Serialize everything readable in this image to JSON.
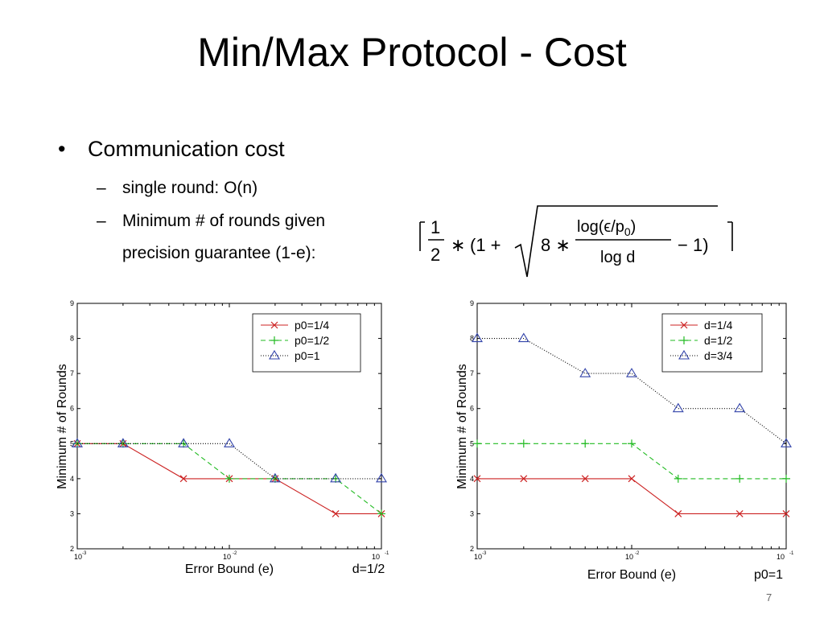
{
  "slide": {
    "title": "Min/Max Protocol - Cost",
    "bullet": "Communication cost",
    "bullet_marker": "•",
    "sub_marker": "–",
    "sub1": "single round: O(n)",
    "sub2_line1": "Minimum # of rounds given",
    "sub2_line2": "precision guarantee (1-e):",
    "page_number": "7"
  },
  "formula": {
    "half_num": "1",
    "half_den": "2",
    "times1": "∗",
    "open": "(1 +",
    "eight": "8 ∗",
    "numerator": "log(ϵ/p",
    "numerator_sub": "0",
    "numerator_close": ")",
    "denominator": "log d",
    "minus": "− 1)"
  },
  "chart_data": [
    {
      "type": "line",
      "xlabel": "Error Bound (e)",
      "ylabel": "Minimum # of Rounds",
      "annotation": "d=1/2",
      "x_scale": "log",
      "x_range": [
        0.001,
        0.1
      ],
      "ylim": [
        2,
        9
      ],
      "grid": false,
      "legend_position": "top-right",
      "x_tick_labels": [
        {
          "base": "10",
          "exp": "-3"
        },
        {
          "base": "10",
          "exp": "-2"
        },
        {
          "base": "10",
          "exp": "-1"
        }
      ],
      "y_ticks": [
        2,
        3,
        4,
        5,
        6,
        7,
        8,
        9
      ],
      "x": [
        0.001,
        0.002,
        0.005,
        0.01,
        0.02,
        0.05,
        0.1
      ],
      "series": [
        {
          "name": "p0=1/4",
          "color": "#cc2222",
          "style": "solid",
          "marker": "x",
          "points": [
            [
              0.001,
              5
            ],
            [
              0.002,
              5
            ],
            [
              0.005,
              4
            ],
            [
              0.01,
              4
            ],
            [
              0.02,
              4
            ],
            [
              0.05,
              3
            ],
            [
              0.1,
              3
            ]
          ]
        },
        {
          "name": "p0=1/2",
          "color": "#22bb22",
          "style": "dashed",
          "marker": "+",
          "points": [
            [
              0.001,
              5
            ],
            [
              0.002,
              5
            ],
            [
              0.005,
              5
            ],
            [
              0.01,
              4
            ],
            [
              0.02,
              4
            ],
            [
              0.05,
              4
            ],
            [
              0.1,
              3
            ]
          ]
        },
        {
          "name": "p0=1",
          "color": "#000000",
          "marker_color": "#3344aa",
          "style": "dotted",
          "marker": "triangle",
          "points": [
            [
              0.001,
              5
            ],
            [
              0.002,
              5
            ],
            [
              0.005,
              5
            ],
            [
              0.01,
              5
            ],
            [
              0.02,
              4
            ],
            [
              0.05,
              4
            ],
            [
              0.1,
              4
            ]
          ]
        }
      ]
    },
    {
      "type": "line",
      "xlabel": "Error Bound (e)",
      "ylabel": "Minimum # of Rounds",
      "annotation": "p0=1",
      "x_scale": "log",
      "x_range": [
        0.001,
        0.1
      ],
      "ylim": [
        2,
        9
      ],
      "grid": false,
      "legend_position": "top-right",
      "x_tick_labels": [
        {
          "base": "10",
          "exp": "-3"
        },
        {
          "base": "10",
          "exp": "-2"
        },
        {
          "base": "10",
          "exp": "-1"
        }
      ],
      "y_ticks": [
        2,
        3,
        4,
        5,
        6,
        7,
        8,
        9
      ],
      "x": [
        0.001,
        0.002,
        0.005,
        0.01,
        0.02,
        0.05,
        0.1
      ],
      "series": [
        {
          "name": "d=1/4",
          "color": "#cc2222",
          "style": "solid",
          "marker": "x",
          "points": [
            [
              0.001,
              4
            ],
            [
              0.002,
              4
            ],
            [
              0.005,
              4
            ],
            [
              0.01,
              4
            ],
            [
              0.02,
              3
            ],
            [
              0.05,
              3
            ],
            [
              0.1,
              3
            ]
          ]
        },
        {
          "name": "d=1/2",
          "color": "#22bb22",
          "style": "dashed",
          "marker": "+",
          "points": [
            [
              0.001,
              5
            ],
            [
              0.002,
              5
            ],
            [
              0.005,
              5
            ],
            [
              0.01,
              5
            ],
            [
              0.02,
              4
            ],
            [
              0.05,
              4
            ],
            [
              0.1,
              4
            ]
          ]
        },
        {
          "name": "d=3/4",
          "color": "#000000",
          "marker_color": "#3344aa",
          "style": "dotted",
          "marker": "triangle",
          "points": [
            [
              0.001,
              8
            ],
            [
              0.002,
              8
            ],
            [
              0.005,
              7
            ],
            [
              0.01,
              7
            ],
            [
              0.02,
              6
            ],
            [
              0.05,
              6
            ],
            [
              0.1,
              5
            ]
          ]
        }
      ]
    }
  ]
}
